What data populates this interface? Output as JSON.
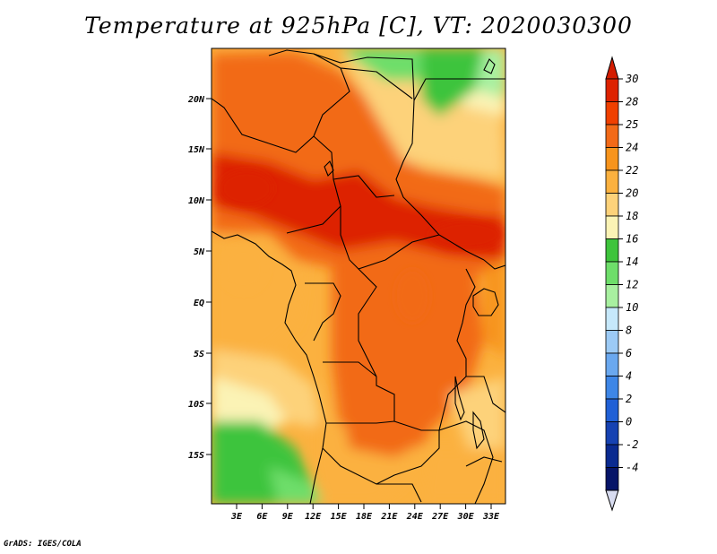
{
  "title": "Temperature at 925hPa [C], VT: 2020030300",
  "credit": "GrADS: IGES/COLA",
  "map": {
    "lat_ticks": [
      "20N",
      "15N",
      "10N",
      "5N",
      "EQ",
      "5S",
      "10S",
      "15S"
    ],
    "lon_ticks": [
      "3E",
      "6E",
      "9E",
      "12E",
      "15E",
      "18E",
      "21E",
      "24E",
      "27E",
      "30E",
      "33E"
    ]
  },
  "colorbar": {
    "levels": [
      "30",
      "28",
      "25",
      "24",
      "22",
      "20",
      "18",
      "16",
      "14",
      "12",
      "10",
      "8",
      "6",
      "4",
      "2",
      "0",
      "-2",
      "-4"
    ],
    "colors": [
      "#dd2200",
      "#f04000",
      "#f26a18",
      "#f7941c",
      "#fbb13f",
      "#fdd27a",
      "#fbf3b5",
      "#3ec43c",
      "#6ede6a",
      "#a8f0a0",
      "#c6e8fb",
      "#9ccaf5",
      "#6aa8ef",
      "#3e86e6",
      "#2060d6",
      "#1642b2",
      "#0a2a90",
      "#061468"
    ],
    "top_color": "#d41c00",
    "bottom_color": "#d8dcf0"
  }
}
